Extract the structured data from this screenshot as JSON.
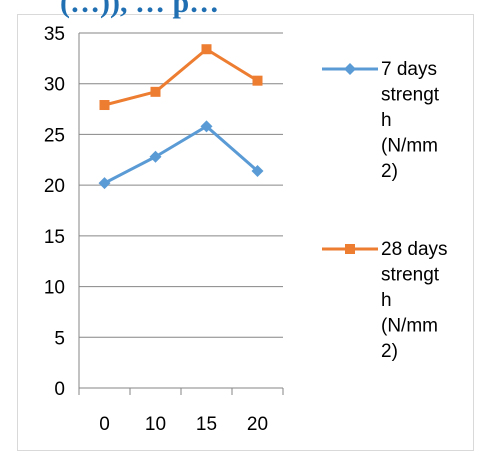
{
  "header_fragment": "(…)), … p…",
  "colors": {
    "series_7": "#5b9bd5",
    "series_28": "#ed7d31",
    "axis": "#868686",
    "grid": "#868686",
    "header": "#1f6fb2"
  },
  "icons": {
    "marker_7": "diamond-marker",
    "marker_28": "square-marker"
  },
  "chart_data": {
    "type": "line",
    "categories": [
      "0",
      "10",
      "15",
      "20"
    ],
    "series": [
      {
        "name": "7  days strength (N/mm2)",
        "values": [
          20.2,
          22.8,
          25.8,
          21.4
        ],
        "marker": "diamond"
      },
      {
        "name": "28 days strength (N/mm2)",
        "values": [
          27.9,
          29.2,
          33.4,
          30.3
        ],
        "marker": "square"
      }
    ],
    "y_ticks": [
      "0",
      "5",
      "10",
      "15",
      "20",
      "25",
      "30",
      "35"
    ],
    "ylim": [
      0,
      35
    ],
    "grid": true,
    "legend": "right",
    "legend_lines": [
      [
        "7  days",
        "strengt",
        "h",
        "(N/mm",
        "2)"
      ],
      [
        "28 days",
        "strengt",
        "h",
        "(N/mm",
        "2)"
      ]
    ]
  }
}
